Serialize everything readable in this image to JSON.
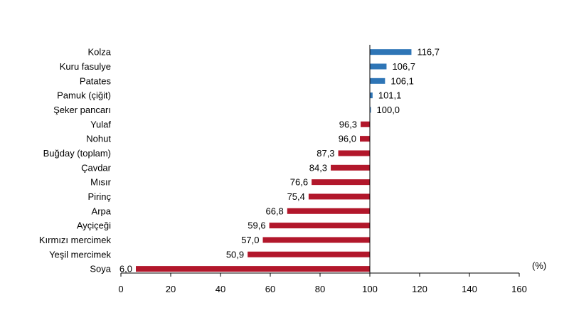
{
  "chart_data": {
    "type": "bar",
    "orientation": "horizontal",
    "baseline": 100,
    "unit_label": "(%)",
    "title": "",
    "xlabel": "",
    "ylabel": "",
    "xlim": [
      0,
      160
    ],
    "x_ticks": [
      "0",
      "20",
      "40",
      "60",
      "80",
      "100",
      "120",
      "140",
      "160"
    ],
    "grid": false,
    "colors": {
      "above": "#2e75b6",
      "below": "#b2172b"
    },
    "categories": [
      "Kolza",
      "Kuru fasulye",
      "Patates",
      "Pamuk (çiğit)",
      "Şeker pancarı",
      "Yulaf",
      "Nohut",
      "Buğday (toplam)",
      "Çavdar",
      "Mısır",
      "Pirinç",
      "Arpa",
      "Ayçiçeği",
      "Kırmızı mercimek",
      "Yeşil mercimek",
      "Soya"
    ],
    "values": [
      116.7,
      106.7,
      106.1,
      101.1,
      100.0,
      96.3,
      96.0,
      87.3,
      84.3,
      76.6,
      75.4,
      66.8,
      59.6,
      57.0,
      50.9,
      6.0
    ],
    "value_labels": [
      "116,7",
      "106,7",
      "106,1",
      "101,1",
      "100,0",
      "96,3",
      "96,0",
      "87,3",
      "84,3",
      "76,6",
      "75,4",
      "66,8",
      "59,6",
      "57,0",
      "50,9",
      "6,0"
    ]
  }
}
